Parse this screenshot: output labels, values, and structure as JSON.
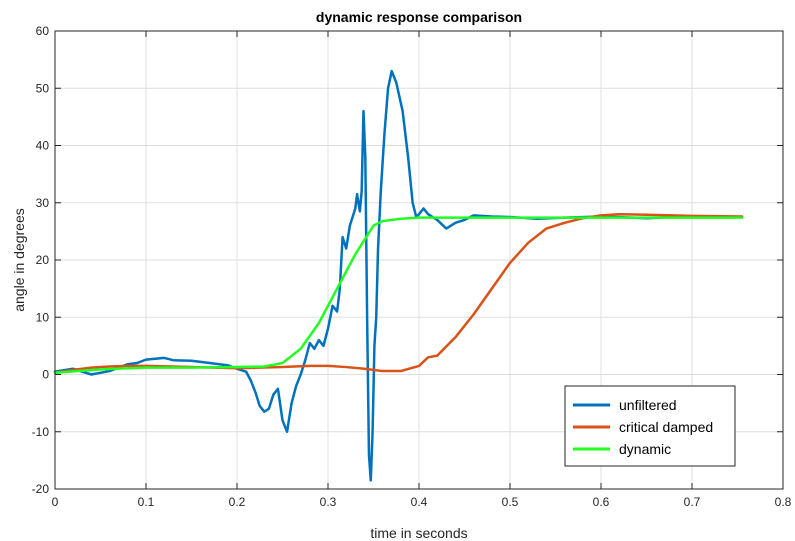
{
  "chart_data": {
    "type": "line",
    "title": "dynamic response comparison",
    "xlabel": "time in seconds",
    "ylabel": "angle in degrees",
    "xlim": [
      0,
      0.8
    ],
    "ylim": [
      -20,
      60
    ],
    "xticks": [
      0,
      0.1,
      0.2,
      0.3,
      0.4,
      0.5,
      0.6,
      0.7,
      0.8
    ],
    "xtick_labels": [
      "0",
      "0.1",
      "0.2",
      "0.3",
      "0.4",
      "0.5",
      "0.6",
      "0.7",
      "0.8"
    ],
    "yticks": [
      -20,
      -10,
      0,
      10,
      20,
      30,
      40,
      50,
      60
    ],
    "ytick_labels": [
      "-20",
      "-10",
      "0",
      "10",
      "20",
      "30",
      "40",
      "50",
      "60"
    ],
    "grid": true,
    "legend_position": "bottom-right",
    "series": [
      {
        "name": "unfiltered",
        "color": "#0072BD",
        "points": [
          [
            0,
            0.5
          ],
          [
            0.02,
            1.0
          ],
          [
            0.04,
            0.0
          ],
          [
            0.06,
            0.6
          ],
          [
            0.08,
            1.8
          ],
          [
            0.09,
            2.0
          ],
          [
            0.1,
            2.6
          ],
          [
            0.12,
            2.9
          ],
          [
            0.13,
            2.5
          ],
          [
            0.15,
            2.4
          ],
          [
            0.17,
            2.0
          ],
          [
            0.19,
            1.6
          ],
          [
            0.2,
            1.0
          ],
          [
            0.21,
            0.5
          ],
          [
            0.215,
            -1.0
          ],
          [
            0.22,
            -3.0
          ],
          [
            0.225,
            -5.5
          ],
          [
            0.23,
            -6.5
          ],
          [
            0.235,
            -6.0
          ],
          [
            0.24,
            -3.5
          ],
          [
            0.245,
            -2.5
          ],
          [
            0.25,
            -8.0
          ],
          [
            0.255,
            -10.0
          ],
          [
            0.26,
            -5.0
          ],
          [
            0.265,
            -2.0
          ],
          [
            0.27,
            0.0
          ],
          [
            0.275,
            2.5
          ],
          [
            0.28,
            5.5
          ],
          [
            0.285,
            4.5
          ],
          [
            0.29,
            6.0
          ],
          [
            0.295,
            5.0
          ],
          [
            0.3,
            8.0
          ],
          [
            0.305,
            12.0
          ],
          [
            0.31,
            11.0
          ],
          [
            0.313,
            15.0
          ],
          [
            0.316,
            24.0
          ],
          [
            0.32,
            22.0
          ],
          [
            0.324,
            26.0
          ],
          [
            0.328,
            28.0
          ],
          [
            0.33,
            29.0
          ],
          [
            0.332,
            31.5
          ],
          [
            0.335,
            28.5
          ],
          [
            0.337,
            32.0
          ],
          [
            0.339,
            46.0
          ],
          [
            0.341,
            38.0
          ],
          [
            0.343,
            10.0
          ],
          [
            0.345,
            -14.0
          ],
          [
            0.347,
            -18.5
          ],
          [
            0.349,
            -10.0
          ],
          [
            0.351,
            5.0
          ],
          [
            0.353,
            10.0
          ],
          [
            0.355,
            22.0
          ],
          [
            0.358,
            32.0
          ],
          [
            0.362,
            42.0
          ],
          [
            0.366,
            50.0
          ],
          [
            0.37,
            53.0
          ],
          [
            0.375,
            51.0
          ],
          [
            0.382,
            46.0
          ],
          [
            0.388,
            38.0
          ],
          [
            0.393,
            30.0
          ],
          [
            0.397,
            27.5
          ],
          [
            0.4,
            28.0
          ],
          [
            0.405,
            29.0
          ],
          [
            0.41,
            28.0
          ],
          [
            0.42,
            27.0
          ],
          [
            0.43,
            25.5
          ],
          [
            0.44,
            26.5
          ],
          [
            0.45,
            27.0
          ],
          [
            0.46,
            27.8
          ],
          [
            0.48,
            27.6
          ],
          [
            0.5,
            27.5
          ],
          [
            0.53,
            27.2
          ],
          [
            0.56,
            27.4
          ],
          [
            0.6,
            27.6
          ],
          [
            0.65,
            27.3
          ],
          [
            0.68,
            27.5
          ],
          [
            0.7,
            27.6
          ],
          [
            0.755,
            27.5
          ]
        ]
      },
      {
        "name": "critical damped",
        "color": "#D95319",
        "points": [
          [
            0,
            0.3
          ],
          [
            0.02,
            0.8
          ],
          [
            0.04,
            1.2
          ],
          [
            0.06,
            1.4
          ],
          [
            0.08,
            1.5
          ],
          [
            0.1,
            1.5
          ],
          [
            0.15,
            1.3
          ],
          [
            0.2,
            1.1
          ],
          [
            0.25,
            1.3
          ],
          [
            0.28,
            1.5
          ],
          [
            0.3,
            1.5
          ],
          [
            0.32,
            1.3
          ],
          [
            0.34,
            1.0
          ],
          [
            0.36,
            0.6
          ],
          [
            0.38,
            0.6
          ],
          [
            0.4,
            1.5
          ],
          [
            0.41,
            3.0
          ],
          [
            0.42,
            3.3
          ],
          [
            0.44,
            6.5
          ],
          [
            0.46,
            10.5
          ],
          [
            0.48,
            15.0
          ],
          [
            0.5,
            19.5
          ],
          [
            0.52,
            23.0
          ],
          [
            0.54,
            25.5
          ],
          [
            0.56,
            26.5
          ],
          [
            0.58,
            27.3
          ],
          [
            0.6,
            27.8
          ],
          [
            0.62,
            28.0
          ],
          [
            0.65,
            27.9
          ],
          [
            0.7,
            27.7
          ],
          [
            0.755,
            27.6
          ]
        ]
      },
      {
        "name": "dynamic",
        "color": "#22FF22",
        "points": [
          [
            0,
            0.3
          ],
          [
            0.05,
            0.9
          ],
          [
            0.1,
            1.2
          ],
          [
            0.15,
            1.2
          ],
          [
            0.2,
            1.3
          ],
          [
            0.23,
            1.4
          ],
          [
            0.25,
            2.0
          ],
          [
            0.27,
            4.5
          ],
          [
            0.29,
            9.0
          ],
          [
            0.31,
            15.0
          ],
          [
            0.33,
            21.0
          ],
          [
            0.35,
            26.0
          ],
          [
            0.36,
            26.8
          ],
          [
            0.38,
            27.2
          ],
          [
            0.4,
            27.4
          ],
          [
            0.45,
            27.4
          ],
          [
            0.5,
            27.4
          ],
          [
            0.6,
            27.4
          ],
          [
            0.7,
            27.4
          ],
          [
            0.755,
            27.4
          ]
        ]
      }
    ]
  }
}
